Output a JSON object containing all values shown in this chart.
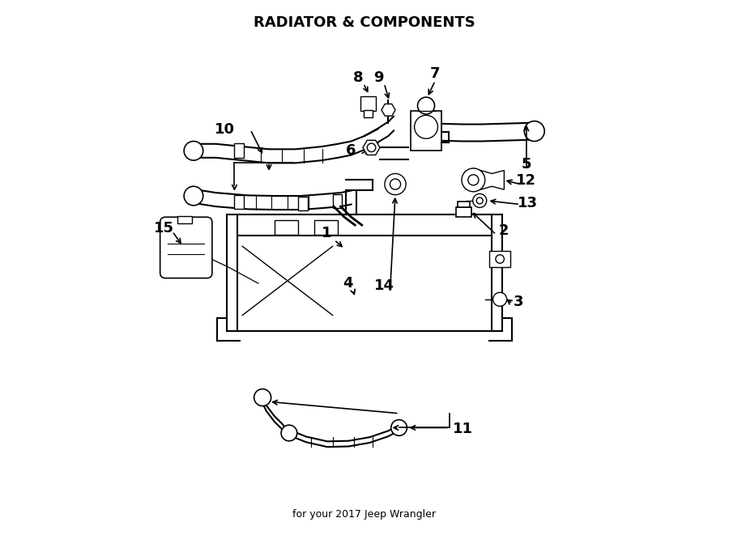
{
  "title": "RADIATOR & COMPONENTS",
  "subtitle": "for your 2017 Jeep Wrangler",
  "bg_color": "#ffffff",
  "line_color": "#000000",
  "label_color": "#000000",
  "figsize": [
    9.0,
    6.61
  ],
  "dpi": 100
}
